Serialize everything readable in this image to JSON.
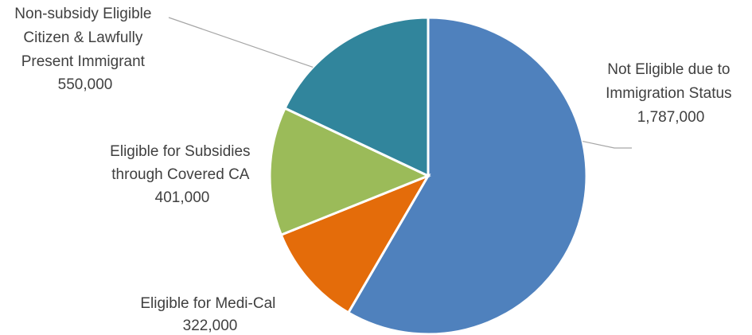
{
  "chart_data": {
    "type": "pie",
    "title": "",
    "slices": [
      {
        "label_lines": [
          "Not Eligible due to",
          "Immigration Status"
        ],
        "value_label": "1,787,000",
        "value": 1787000,
        "color": "#4f81bd"
      },
      {
        "label_lines": [
          "Eligible for Medi-Cal"
        ],
        "value_label": "322,000",
        "value": 322000,
        "color": "#e46c0a"
      },
      {
        "label_lines": [
          "Eligible for Subsidies",
          "through Covered CA"
        ],
        "value_label": "401,000",
        "value": 401000,
        "color": "#9bbb59"
      },
      {
        "label_lines": [
          "Non-subsidy Eligible",
          "Citizen & Lawfully",
          "Present Immigrant"
        ],
        "value_label": "550,000",
        "value": 550000,
        "color": "#31859c"
      }
    ],
    "start_angle": "12 o'clock",
    "direction": "clockwise",
    "legend": "none"
  }
}
